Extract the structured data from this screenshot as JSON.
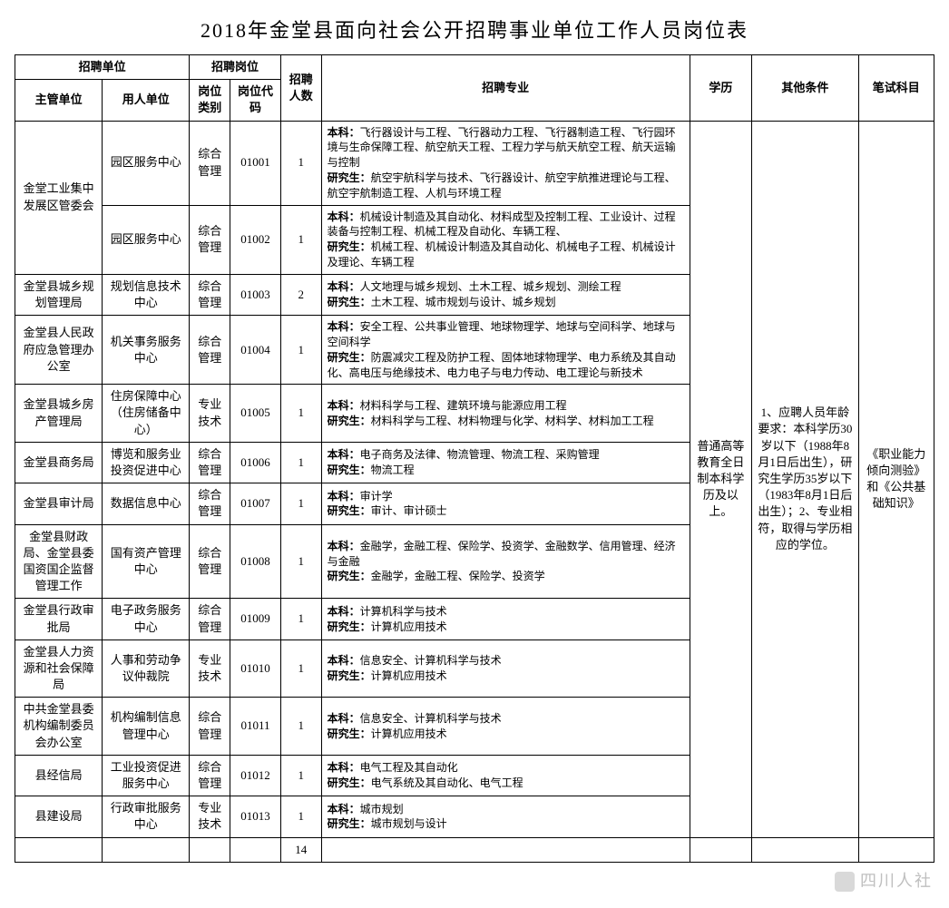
{
  "title": "2018年金堂县面向社会公开招聘事业单位工作人员岗位表",
  "header": {
    "col_unit_group": "招聘单位",
    "col_post_group": "招聘岗位",
    "col_supervisor": "主管单位",
    "col_employer": "用人单位",
    "col_category": "岗位类别",
    "col_code": "岗位代码",
    "col_count": "招聘人数",
    "col_major": "招聘专业",
    "col_edu": "学历",
    "col_other": "其他条件",
    "col_exam": "笔试科目"
  },
  "colwidths": {
    "supervisor": "90px",
    "employer": "90px",
    "category": "42px",
    "code": "52px",
    "count": "42px",
    "major": "380px",
    "edu": "64px",
    "other": "110px",
    "exam": "78px"
  },
  "education": "普通高等教育全日制本科学历及以上。",
  "other": "1、应聘人员年龄要求：本科学历30岁以下（1988年8月1日后出生），研究生学历35岁以下（1983年8月1日后出生）；2、专业相符，取得与学历相应的学位。",
  "exam": "《职业能力倾向测验》和《公共基础知识》",
  "rows": [
    {
      "supervisor": "金堂工业集中发展区管委会",
      "supervisor_rowspan": 2,
      "employer": "园区服务中心",
      "category": "综合管理",
      "code": "01001",
      "count": "1",
      "major": "本科：飞行器设计与工程、飞行器动力工程、飞行器制造工程、飞行园环境与生命保障工程、航空航天工程、工程力学与航天航空工程、航天运输与控制\n研究生：航空宇航科学与技术、飞行器设计、航空宇航推进理论与工程、航空宇航制造工程、人机与环境工程"
    },
    {
      "employer": "园区服务中心",
      "category": "综合管理",
      "code": "01002",
      "count": "1",
      "major": "本科：机械设计制造及其自动化、材料成型及控制工程、工业设计、过程装备与控制工程、机械工程及自动化、车辆工程、\n研究生：机械工程、机械设计制造及其自动化、机械电子工程、机械设计及理论、车辆工程"
    },
    {
      "supervisor": "金堂县城乡规划管理局",
      "employer": "规划信息技术中心",
      "category": "综合管理",
      "code": "01003",
      "count": "2",
      "major": "本科：人文地理与城乡规划、土木工程、城乡规划、测绘工程\n研究生：土木工程、城市规划与设计、城乡规划"
    },
    {
      "supervisor": "金堂县人民政府应急管理办公室",
      "employer": "机关事务服务中心",
      "category": "综合管理",
      "code": "01004",
      "count": "1",
      "major": "本科：安全工程、公共事业管理、地球物理学、地球与空间科学、地球与空间科学\n研究生：防震减灾工程及防护工程、固体地球物理学、电力系统及其自动化、高电压与绝缘技术、电力电子与电力传动、电工理论与新技术"
    },
    {
      "supervisor": "金堂县城乡房产管理局",
      "employer": "住房保障中心（住房储备中心）",
      "category": "专业技术",
      "code": "01005",
      "count": "1",
      "major": "本科：材料科学与工程、建筑环境与能源应用工程\n研究生：材料科学与工程、材料物理与化学、材料学、材料加工工程"
    },
    {
      "supervisor": "金堂县商务局",
      "employer": "博览和服务业投资促进中心",
      "category": "综合管理",
      "code": "01006",
      "count": "1",
      "major": "本科：电子商务及法律、物流管理、物流工程、采购管理\n研究生：物流工程"
    },
    {
      "supervisor": "金堂县审计局",
      "employer": "数据信息中心",
      "category": "综合管理",
      "code": "01007",
      "count": "1",
      "major": "本科：审计学\n研究生：审计、审计硕士"
    },
    {
      "supervisor": "金堂县财政局、金堂县委国资国企监督管理工作",
      "employer": "国有资产管理中心",
      "category": "综合管理",
      "code": "01008",
      "count": "1",
      "major": "本科：金融学，金融工程、保险学、投资学、金融数学、信用管理、经济与金融\n研究生：金融学，金融工程、保险学、投资学"
    },
    {
      "supervisor": "金堂县行政审批局",
      "employer": "电子政务服务中心",
      "category": "综合管理",
      "code": "01009",
      "count": "1",
      "major": "本科：计算机科学与技术\n研究生：计算机应用技术"
    },
    {
      "supervisor": "金堂县人力资源和社会保障局",
      "employer": "人事和劳动争议仲裁院",
      "category": "专业技术",
      "code": "01010",
      "count": "1",
      "major": "本科：信息安全、计算机科学与技术\n研究生：计算机应用技术"
    },
    {
      "supervisor": "中共金堂县委机构编制委员会办公室",
      "employer": "机构编制信息管理中心",
      "category": "综合管理",
      "code": "01011",
      "count": "1",
      "major": "本科：信息安全、计算机科学与技术\n研究生：计算机应用技术"
    },
    {
      "supervisor": "县经信局",
      "employer": "工业投资促进服务中心",
      "category": "综合管理",
      "code": "01012",
      "count": "1",
      "major": "本科：电气工程及其自动化\n研究生：电气系统及其自动化、电气工程"
    },
    {
      "supervisor": "县建设局",
      "employer": "行政审批服务中心",
      "category": "专业技术",
      "code": "01013",
      "count": "1",
      "major": "本科：城市规划\n研究生：城市规划与设计"
    }
  ],
  "total_count": "14",
  "watermark": "四川人社"
}
